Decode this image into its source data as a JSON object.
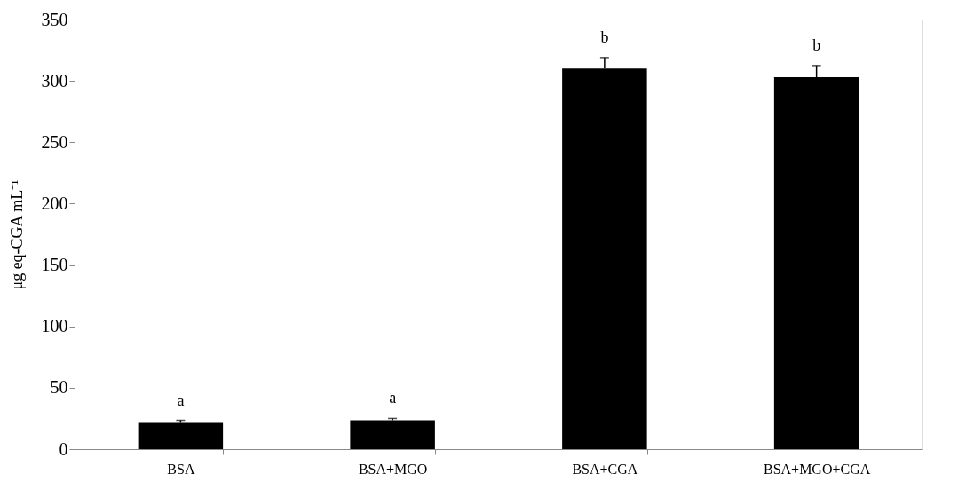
{
  "chart_data": {
    "type": "bar",
    "ylabel": "μg eq-CGA mL⁻¹",
    "categories": [
      "BSA",
      "BSA+MGO",
      "BSA+CGA",
      "BSA+MGO+CGA"
    ],
    "values": [
      22,
      23.5,
      310,
      303
    ],
    "errors": [
      1.5,
      1.5,
      9,
      9.5
    ],
    "color": "#000000",
    "ylim": [
      0,
      350
    ],
    "yticks": [
      0,
      50,
      100,
      150,
      200,
      250,
      300,
      350
    ],
    "grid": false,
    "annotations": [
      "a",
      "a",
      "b",
      "b"
    ]
  }
}
